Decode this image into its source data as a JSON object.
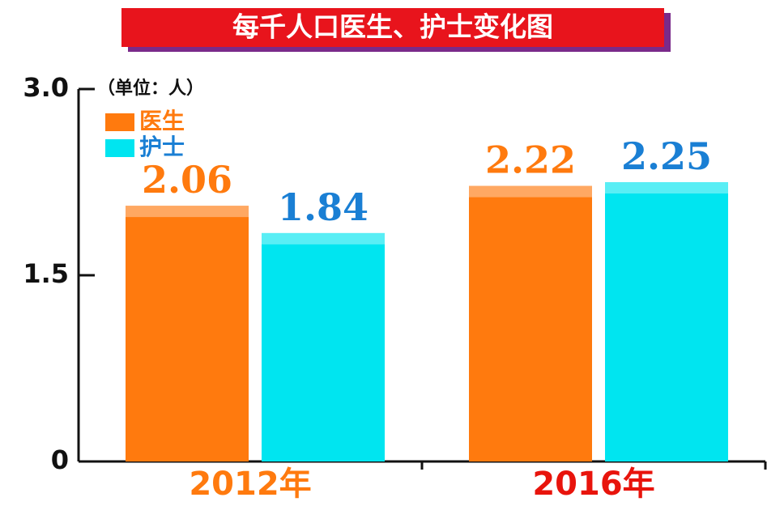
{
  "chart_data": {
    "type": "bar",
    "title": "每千人口医生、护士变化图",
    "unit_label": "（单位：人）",
    "categories": [
      "2012年",
      "2016年"
    ],
    "category_colors": [
      "#ff7a0e",
      "#e8140c"
    ],
    "series": [
      {
        "name": "医生",
        "color": "#ff7a0e",
        "label_color": "#ff7a0e",
        "values": [
          2.06,
          2.22
        ]
      },
      {
        "name": "护士",
        "color": "#00e5f0",
        "label_color": "#1a7fd4",
        "values": [
          1.84,
          2.25
        ]
      }
    ],
    "ylim": [
      0,
      3
    ],
    "yticks": [
      0,
      1.5,
      {
        "value": 3,
        "label": "3.0"
      }
    ]
  }
}
